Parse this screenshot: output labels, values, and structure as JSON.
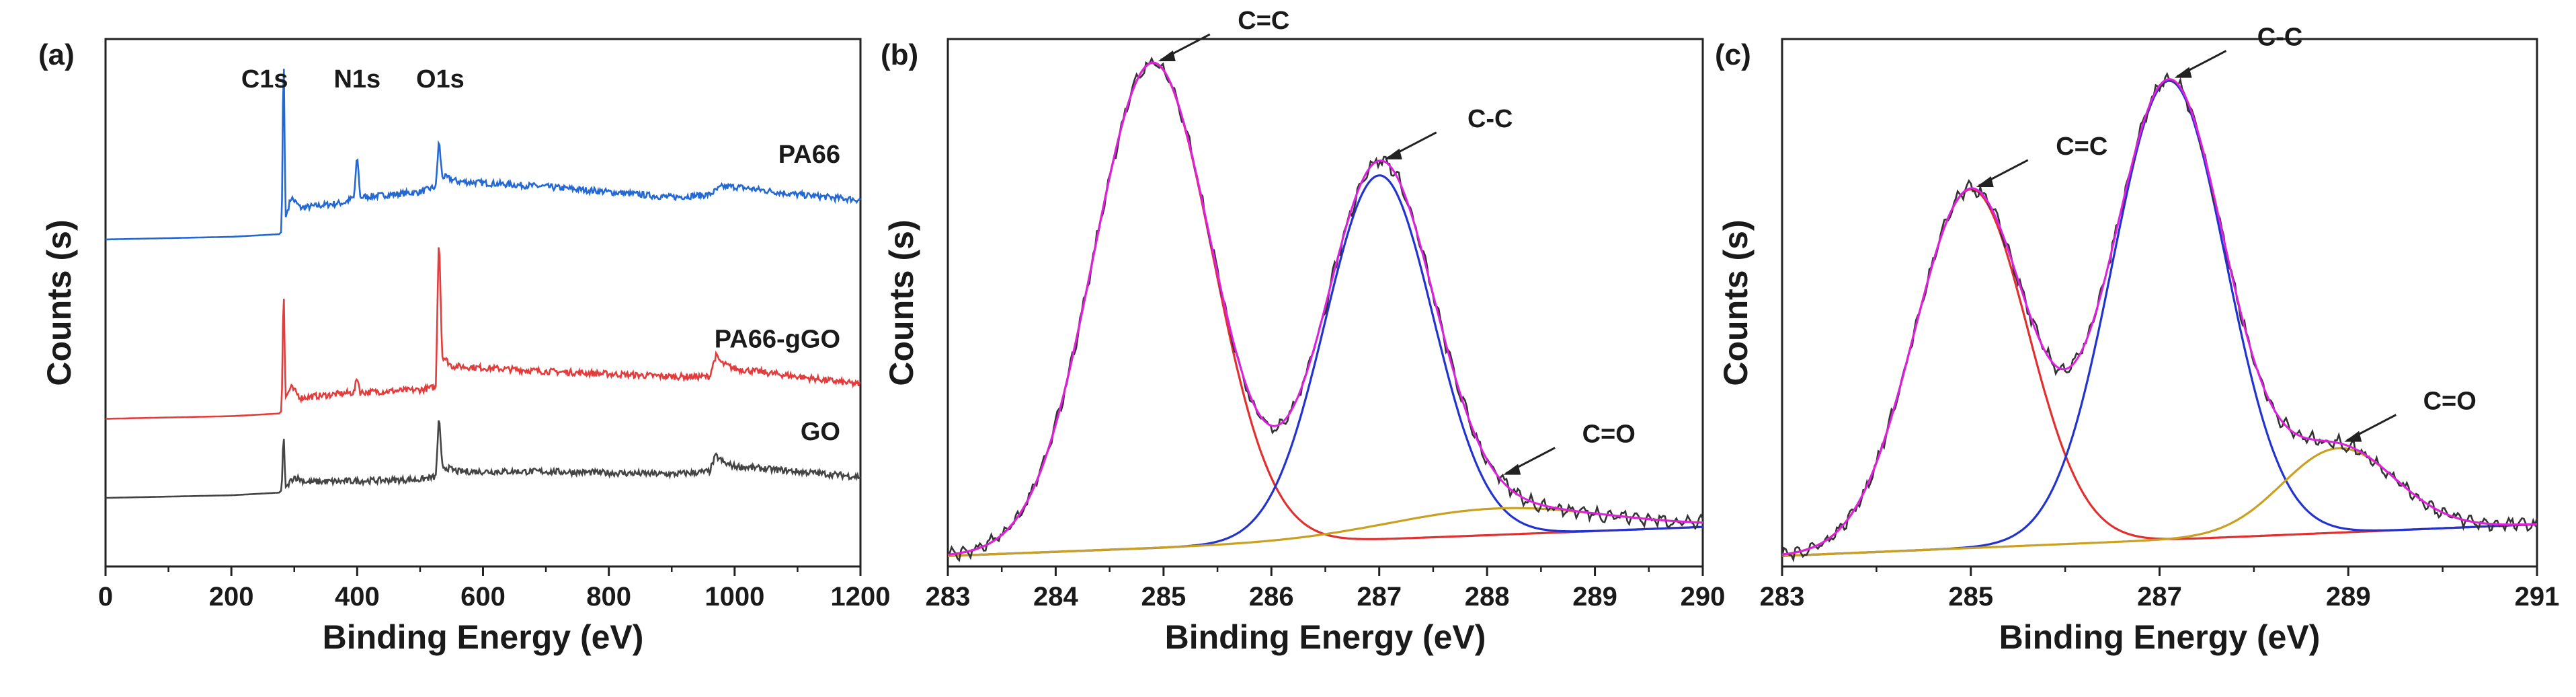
{
  "chart_data": [
    {
      "panel": "(a)",
      "type": "line",
      "xlabel": "Binding Energy (eV)",
      "ylabel": "Counts (s)",
      "xlim": [
        0,
        1200
      ],
      "xticks": [
        0,
        200,
        400,
        600,
        800,
        1000,
        1200
      ],
      "ylim": [
        0,
        100
      ],
      "peak_labels": [
        {
          "text": "C1s",
          "x": 285
        },
        {
          "text": "N1s",
          "x": 400
        },
        {
          "text": "O1s",
          "x": 532
        }
      ],
      "series": [
        {
          "name": "PA66",
          "color": "#2468d4",
          "points": [
            [
              0,
              62
            ],
            [
              200,
              62.5
            ],
            [
              276,
              63
            ],
            [
              280,
              63.5
            ],
            [
              283,
              100
            ],
            [
              286,
              66
            ],
            [
              295,
              70
            ],
            [
              310,
              68
            ],
            [
              380,
              69
            ],
            [
              395,
              70
            ],
            [
              400,
              78
            ],
            [
              405,
              70
            ],
            [
              500,
              71
            ],
            [
              525,
              72
            ],
            [
              530,
              81
            ],
            [
              535,
              74
            ],
            [
              560,
              73
            ],
            [
              700,
              72
            ],
            [
              900,
              70
            ],
            [
              960,
              70.5
            ],
            [
              980,
              72
            ],
            [
              1000,
              72
            ],
            [
              1100,
              70.5
            ],
            [
              1200,
              69.5
            ]
          ]
        },
        {
          "name": "PA66-gGO",
          "color": "#e23c3c",
          "points": [
            [
              0,
              28
            ],
            [
              200,
              28.5
            ],
            [
              276,
              29
            ],
            [
              280,
              29.5
            ],
            [
              283,
              54.5
            ],
            [
              286,
              32
            ],
            [
              295,
              34
            ],
            [
              310,
              32
            ],
            [
              395,
              33
            ],
            [
              400,
              36
            ],
            [
              405,
              33
            ],
            [
              500,
              33.5
            ],
            [
              525,
              34
            ],
            [
              530,
              64
            ],
            [
              535,
              40
            ],
            [
              550,
              38
            ],
            [
              700,
              37
            ],
            [
              900,
              36
            ],
            [
              960,
              36
            ],
            [
              970,
              40
            ],
            [
              980,
              38.5
            ],
            [
              1000,
              37.5
            ],
            [
              1100,
              36
            ],
            [
              1200,
              34.5
            ]
          ]
        },
        {
          "name": "GO",
          "color": "#444444",
          "points": [
            [
              0,
              13
            ],
            [
              200,
              13.5
            ],
            [
              276,
              14
            ],
            [
              280,
              14.5
            ],
            [
              283,
              26
            ],
            [
              286,
              15
            ],
            [
              300,
              17
            ],
            [
              320,
              16
            ],
            [
              500,
              16.5
            ],
            [
              525,
              17
            ],
            [
              530,
              28.5
            ],
            [
              535,
              19
            ],
            [
              560,
              18
            ],
            [
              700,
              18
            ],
            [
              900,
              17.5
            ],
            [
              960,
              18
            ],
            [
              970,
              21
            ],
            [
              985,
              19.5
            ],
            [
              1000,
              19
            ],
            [
              1100,
              18
            ],
            [
              1200,
              17
            ]
          ]
        }
      ]
    },
    {
      "panel": "(b)",
      "type": "line",
      "xlabel": "Binding Energy (eV)",
      "ylabel": "Counts (s)",
      "xlim": [
        283,
        290
      ],
      "xticks": [
        283,
        284,
        285,
        286,
        287,
        288,
        289,
        290
      ],
      "ylim": [
        0,
        100
      ],
      "baseline": {
        "start": 2,
        "end": 7.5
      },
      "components": [
        {
          "name": "C=C",
          "center": 284.9,
          "height": 92,
          "sigma": 0.55,
          "color": "#e03030"
        },
        {
          "name": "C-C",
          "center": 287.0,
          "height": 69,
          "sigma": 0.5,
          "color": "#2233d0"
        },
        {
          "name": "C=O",
          "center": 288.1,
          "height": 5,
          "sigma": 1.0,
          "color": "#c9a020"
        }
      ],
      "envelope_color": "#e020e0",
      "raw_color": "#333333",
      "annotations": [
        {
          "text": "C=C",
          "x": 284.9
        },
        {
          "text": "C-C",
          "x": 287.0
        },
        {
          "text": "C=O",
          "x": 288.1
        }
      ]
    },
    {
      "panel": "(c)",
      "type": "line",
      "xlabel": "Binding Energy (eV)",
      "ylabel": "Counts (s)",
      "xlim": [
        283,
        291
      ],
      "xticks": [
        283,
        285,
        287,
        289,
        291
      ],
      "ylim": [
        0,
        100
      ],
      "baseline": {
        "start": 2,
        "end": 8
      },
      "components": [
        {
          "name": "C=C",
          "center": 285.0,
          "height": 68,
          "sigma": 0.6,
          "color": "#e03030"
        },
        {
          "name": "C-C",
          "center": 287.1,
          "height": 87,
          "sigma": 0.6,
          "color": "#2233d0"
        },
        {
          "name": "C=O",
          "center": 288.9,
          "height": 16,
          "sigma": 0.6,
          "color": "#c9a020"
        }
      ],
      "envelope_color": "#e020e0",
      "raw_color": "#333333",
      "annotations": [
        {
          "text": "C=C",
          "x": 285.0
        },
        {
          "text": "C-C",
          "x": 287.1
        },
        {
          "text": "C=O",
          "x": 288.9
        }
      ]
    }
  ]
}
